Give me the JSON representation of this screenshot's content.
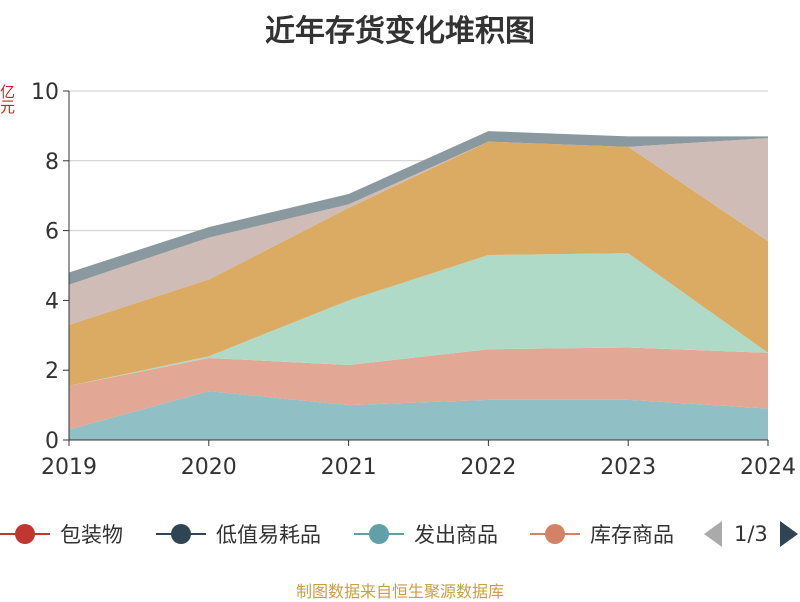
{
  "title": "近年存货变化堆积图",
  "unit_label": "亿元",
  "source": "制图数据来自恒生聚源数据库",
  "legend": {
    "items": [
      {
        "label": "包装物",
        "color": "#c23531"
      },
      {
        "label": "低值易耗品",
        "color": "#2f4554"
      },
      {
        "label": "发出商品",
        "color": "#61a0a8"
      },
      {
        "label": "库存商品",
        "color": "#d48265"
      }
    ],
    "page": "1/3"
  },
  "chart_data": {
    "type": "area",
    "stacked": true,
    "categories": [
      "2019",
      "2020",
      "2021",
      "2022",
      "2023",
      "2024"
    ],
    "ylim": [
      0,
      10
    ],
    "yticks": [
      0,
      2,
      4,
      6,
      8,
      10
    ],
    "ylabel": "亿元",
    "grid": true,
    "series": [
      {
        "color": "#91bfc6",
        "values": [
          0.3,
          1.4,
          1.0,
          1.15,
          1.15,
          0.9
        ]
      },
      {
        "color": "#e2a795",
        "values": [
          1.25,
          0.95,
          1.15,
          1.45,
          1.5,
          1.6
        ]
      },
      {
        "color": "#b0dac8",
        "values": [
          0.0,
          0.05,
          1.85,
          2.7,
          2.7,
          0.0
        ]
      },
      {
        "color": "#dbab64",
        "values": [
          1.75,
          2.2,
          2.65,
          3.25,
          3.05,
          3.2
        ]
      },
      {
        "color": "#cfbcb7",
        "values": [
          1.15,
          1.2,
          0.1,
          0.0,
          0.0,
          2.95
        ]
      },
      {
        "color": "#8a99a0",
        "values": [
          0.35,
          0.3,
          0.3,
          0.3,
          0.3,
          0.05
        ]
      }
    ]
  }
}
